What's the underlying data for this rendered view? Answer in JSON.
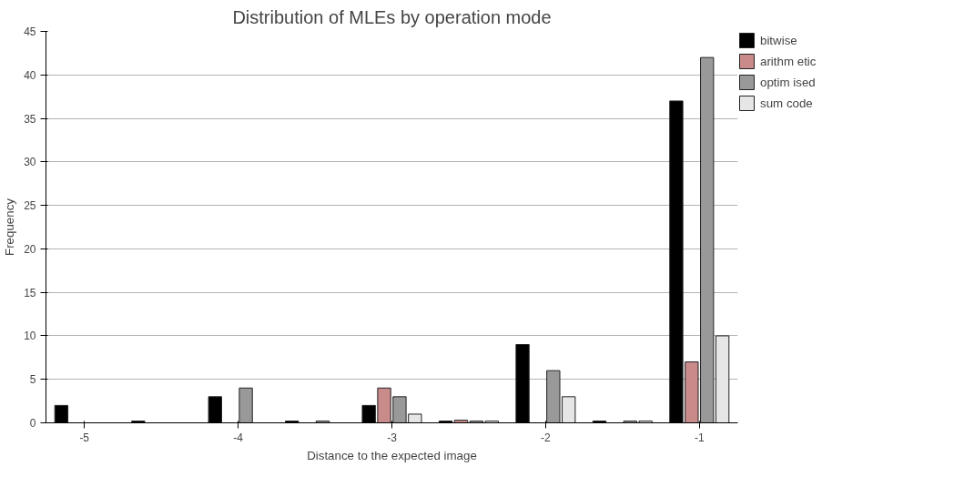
{
  "chart_data": {
    "type": "bar",
    "title": "Distribution of MLEs by operation mode",
    "xlabel": "Distance to the expected image",
    "ylabel": "Frequency",
    "categories": [
      "-5",
      null,
      "-4",
      null,
      "-3",
      null,
      "-2",
      null,
      "-1"
    ],
    "series": [
      {
        "name": "bitwise",
        "color": "#000000",
        "values": [
          2,
          0.2,
          3,
          0.2,
          2,
          0.2,
          9,
          0.2,
          37
        ]
      },
      {
        "name": "arithm etic",
        "color": "#c98a8a",
        "values": [
          null,
          null,
          null,
          null,
          4,
          0.3,
          null,
          null,
          7
        ]
      },
      {
        "name": "optim ised",
        "color": "#999999",
        "values": [
          null,
          null,
          4,
          0.2,
          3,
          0.2,
          6,
          0.2,
          42
        ]
      },
      {
        "name": "sum code",
        "color": "#e6e6e6",
        "values": [
          null,
          null,
          null,
          null,
          1,
          0.2,
          3,
          0.2,
          10
        ]
      }
    ],
    "ylim": [
      0,
      45
    ],
    "yticks": [
      0,
      5,
      10,
      15,
      20,
      25,
      30,
      35,
      40,
      45
    ],
    "grid": "y",
    "legend": "right"
  }
}
